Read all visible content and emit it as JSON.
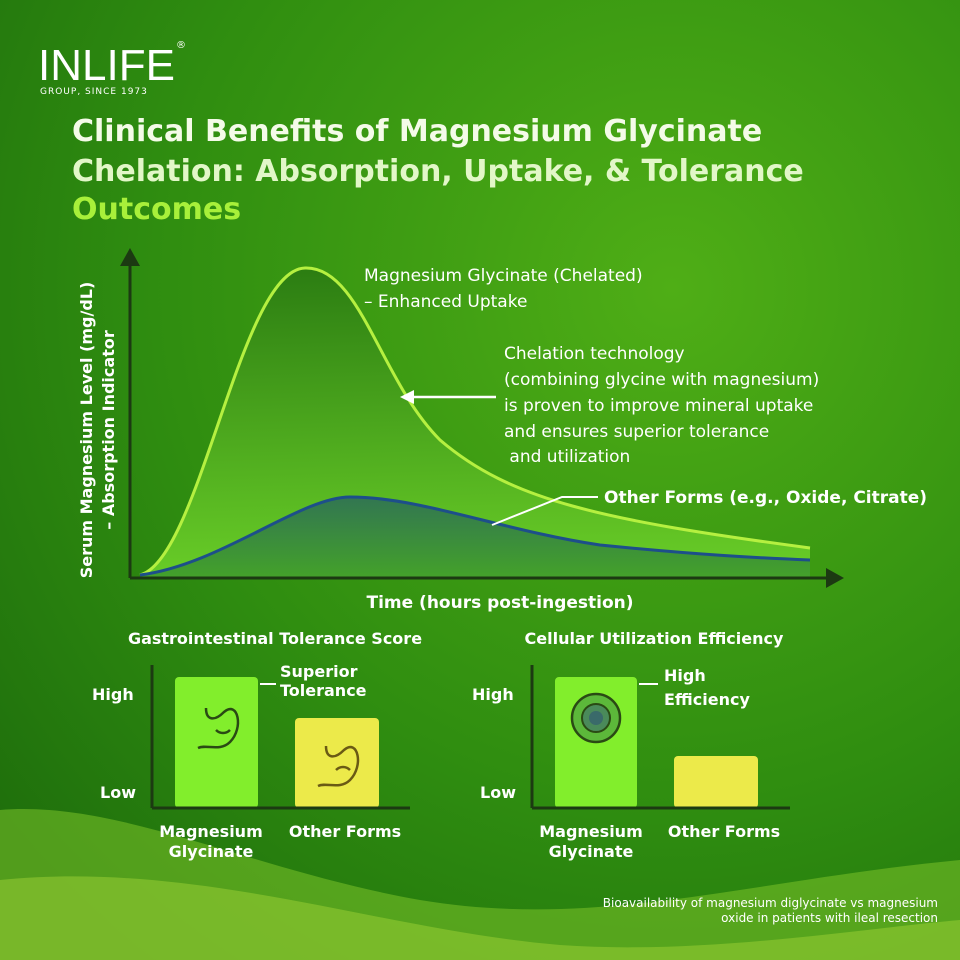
{
  "brand": {
    "name": "INLIFE",
    "registered": "®",
    "tagline": "GROUP, SINCE 1973"
  },
  "title": {
    "lines": [
      "Clinical Benefits of Magnesium Glycinate",
      "Chelation: Absorption, Uptake, & Tolerance",
      "Outcomes"
    ]
  },
  "absorption_chart": {
    "y_label": [
      "Serum Magnesium Level (mg/dL)",
      "– Absorption Indicator"
    ],
    "x_label": "Time (hours post-ingestion)",
    "glycinate_label": [
      "Magnesium Glycinate (Chelated)",
      "– Enhanced Uptake"
    ],
    "note": [
      "Chelation technology",
      "(combining glycine with magnesium)",
      "is proven to improve mineral uptake",
      "and ensures superior tolerance",
      " and utilization"
    ],
    "other_label": "Other Forms (e.g., Oxide, Citrate)"
  },
  "tolerance_chart": {
    "title": "Gastrointestinal Tolerance Score",
    "high": "High",
    "low": "Low",
    "callout": [
      "Superior",
      "Tolerance"
    ],
    "categories": [
      [
        "Magnesium",
        "Glycinate"
      ],
      [
        "Other Forms"
      ]
    ]
  },
  "utilization_chart": {
    "title": "Cellular Utilization Efficiency",
    "high": "High",
    "low": "Low",
    "callout": [
      "High",
      "Efficiency"
    ],
    "categories": [
      [
        "Magnesium",
        "Glycinate"
      ],
      [
        "Other Forms"
      ]
    ]
  },
  "footnote": [
    "Bioavailability of magnesium diglycinate vs magnesium",
    "oxide in patients with ileal resection"
  ]
}
